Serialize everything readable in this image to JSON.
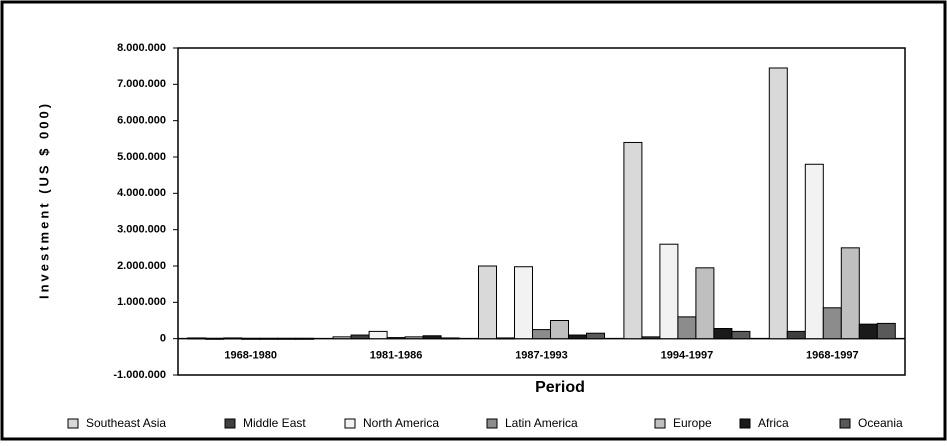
{
  "chart_data": {
    "type": "bar",
    "y_label": "Investment (US $ 000)",
    "x_label": "Period",
    "categories": [
      "1968-1980",
      "1981-1986",
      "1987-1993",
      "1994-1997",
      "1968-1997"
    ],
    "series": [
      {
        "name": "Southeast Asia",
        "color": "#d9d9d9",
        "values": [
          20000,
          50000,
          2000000,
          5400000,
          7450000
        ]
      },
      {
        "name": "Middle East",
        "color": "#404040",
        "values": [
          10000,
          100000,
          20000,
          50000,
          200000
        ]
      },
      {
        "name": "North America",
        "color": "#f2f2f2",
        "values": [
          20000,
          200000,
          1980000,
          2600000,
          4800000
        ]
      },
      {
        "name": "Latin America",
        "color": "#8c8c8c",
        "values": [
          10000,
          30000,
          250000,
          600000,
          850000
        ]
      },
      {
        "name": "Europe",
        "color": "#bfbfbf",
        "values": [
          10000,
          50000,
          500000,
          1950000,
          2500000
        ]
      },
      {
        "name": "Africa",
        "color": "#1a1a1a",
        "values": [
          10000,
          80000,
          100000,
          280000,
          400000
        ]
      },
      {
        "name": "Oceania",
        "color": "#595959",
        "values": [
          10000,
          20000,
          150000,
          200000,
          420000
        ]
      }
    ],
    "ylim": [
      -1000000,
      8000000
    ],
    "yticks": [
      {
        "value": -1000000,
        "label": "-1.000.000"
      },
      0,
      {
        "value": 1000000,
        "label": "1.000.000"
      },
      {
        "value": 2000000,
        "label": "2.000.000"
      },
      {
        "value": 3000000,
        "label": "3.000.000"
      },
      {
        "value": 4000000,
        "label": "4.000.000"
      },
      {
        "value": 5000000,
        "label": "5.000.000"
      },
      {
        "value": 6000000,
        "label": "6.000.000"
      },
      {
        "value": 7000000,
        "label": "7.000.000"
      },
      {
        "value": 8000000,
        "label": "8.000.000"
      }
    ],
    "grid": false
  }
}
